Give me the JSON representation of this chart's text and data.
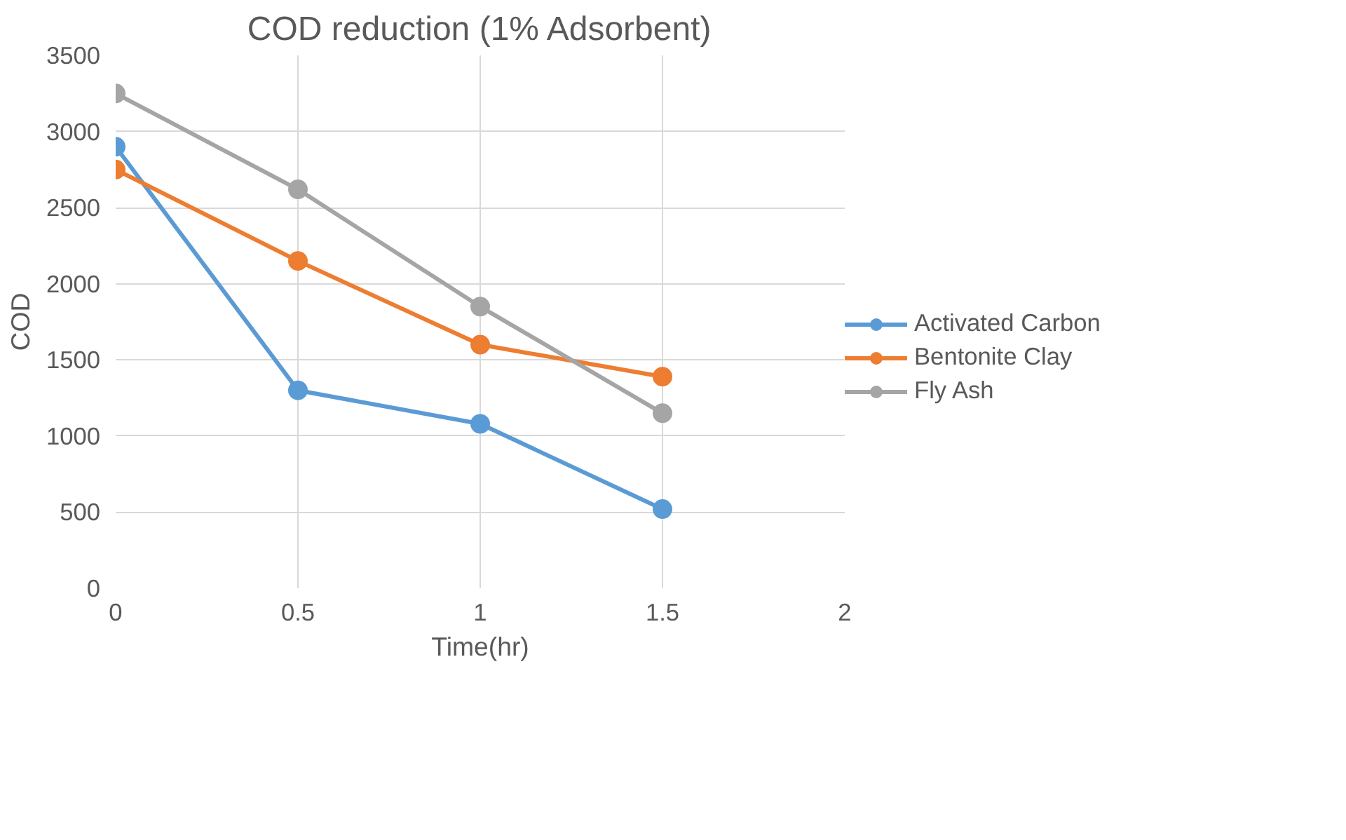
{
  "chart_data": {
    "type": "line",
    "title": "COD reduction (1% Adsorbent)",
    "xlabel": "Time(hr)",
    "ylabel": "COD",
    "x": [
      0,
      0.5,
      1,
      1.5
    ],
    "series": [
      {
        "name": "Activated Carbon",
        "color": "#5b9bd5",
        "values": [
          2900,
          1300,
          1080,
          520
        ]
      },
      {
        "name": "Bentonite Clay",
        "color": "#ed7d31",
        "values": [
          2750,
          2150,
          1600,
          1390
        ]
      },
      {
        "name": "Fly Ash",
        "color": "#a5a5a5",
        "values": [
          3250,
          2620,
          1850,
          1150
        ]
      }
    ],
    "xlim": [
      0,
      2
    ],
    "xticks": [
      0,
      0.5,
      1,
      1.5,
      2
    ],
    "ylim": [
      0,
      3500
    ],
    "yticks": [
      0,
      500,
      1000,
      1500,
      2000,
      2500,
      3000,
      3500
    ],
    "grid": true,
    "legend": "right",
    "marker": "circle",
    "line_style": "solid"
  }
}
